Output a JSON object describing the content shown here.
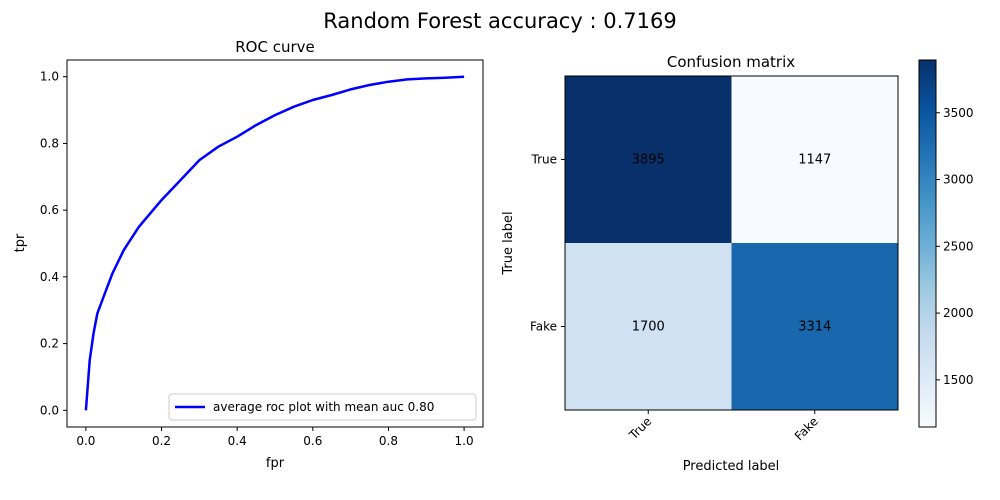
{
  "figure": {
    "title": "Random Forest accuracy : 0.7169"
  },
  "chart_data": [
    {
      "type": "line",
      "title": "ROC curve",
      "xlabel": "fpr",
      "ylabel": "tpr",
      "xlim": [
        -0.05,
        1.05
      ],
      "ylim": [
        -0.05,
        1.05
      ],
      "xticks": [
        "0.0",
        "0.2",
        "0.4",
        "0.6",
        "0.8",
        "1.0"
      ],
      "yticks": [
        "0.0",
        "0.2",
        "0.4",
        "0.6",
        "0.8",
        "1.0"
      ],
      "grid": false,
      "legend_position": "lower-right",
      "series": [
        {
          "name": "average roc plot with mean auc 0.80",
          "color": "#0000ff",
          "x": [
            0.0,
            0.01,
            0.02,
            0.03,
            0.05,
            0.07,
            0.1,
            0.14,
            0.2,
            0.25,
            0.3,
            0.35,
            0.4,
            0.45,
            0.5,
            0.55,
            0.6,
            0.65,
            0.7,
            0.75,
            0.8,
            0.85,
            0.9,
            0.95,
            1.0
          ],
          "y": [
            0.0,
            0.15,
            0.23,
            0.29,
            0.35,
            0.41,
            0.48,
            0.55,
            0.63,
            0.69,
            0.75,
            0.79,
            0.82,
            0.855,
            0.885,
            0.91,
            0.93,
            0.945,
            0.962,
            0.975,
            0.985,
            0.992,
            0.995,
            0.997,
            1.0
          ]
        }
      ]
    },
    {
      "type": "heatmap",
      "title": "Confusion matrix",
      "xlabel": "Predicted label",
      "ylabel": "True label",
      "x_categories": [
        "True",
        "Fake"
      ],
      "y_categories": [
        "True",
        "Fake"
      ],
      "values": [
        [
          3895,
          1147
        ],
        [
          1700,
          3314
        ]
      ],
      "colorbar_ticks": [
        "1500",
        "2000",
        "2500",
        "3000",
        "3500"
      ],
      "colormap": "Blues",
      "vmin": 1147,
      "vmax": 3895
    }
  ]
}
